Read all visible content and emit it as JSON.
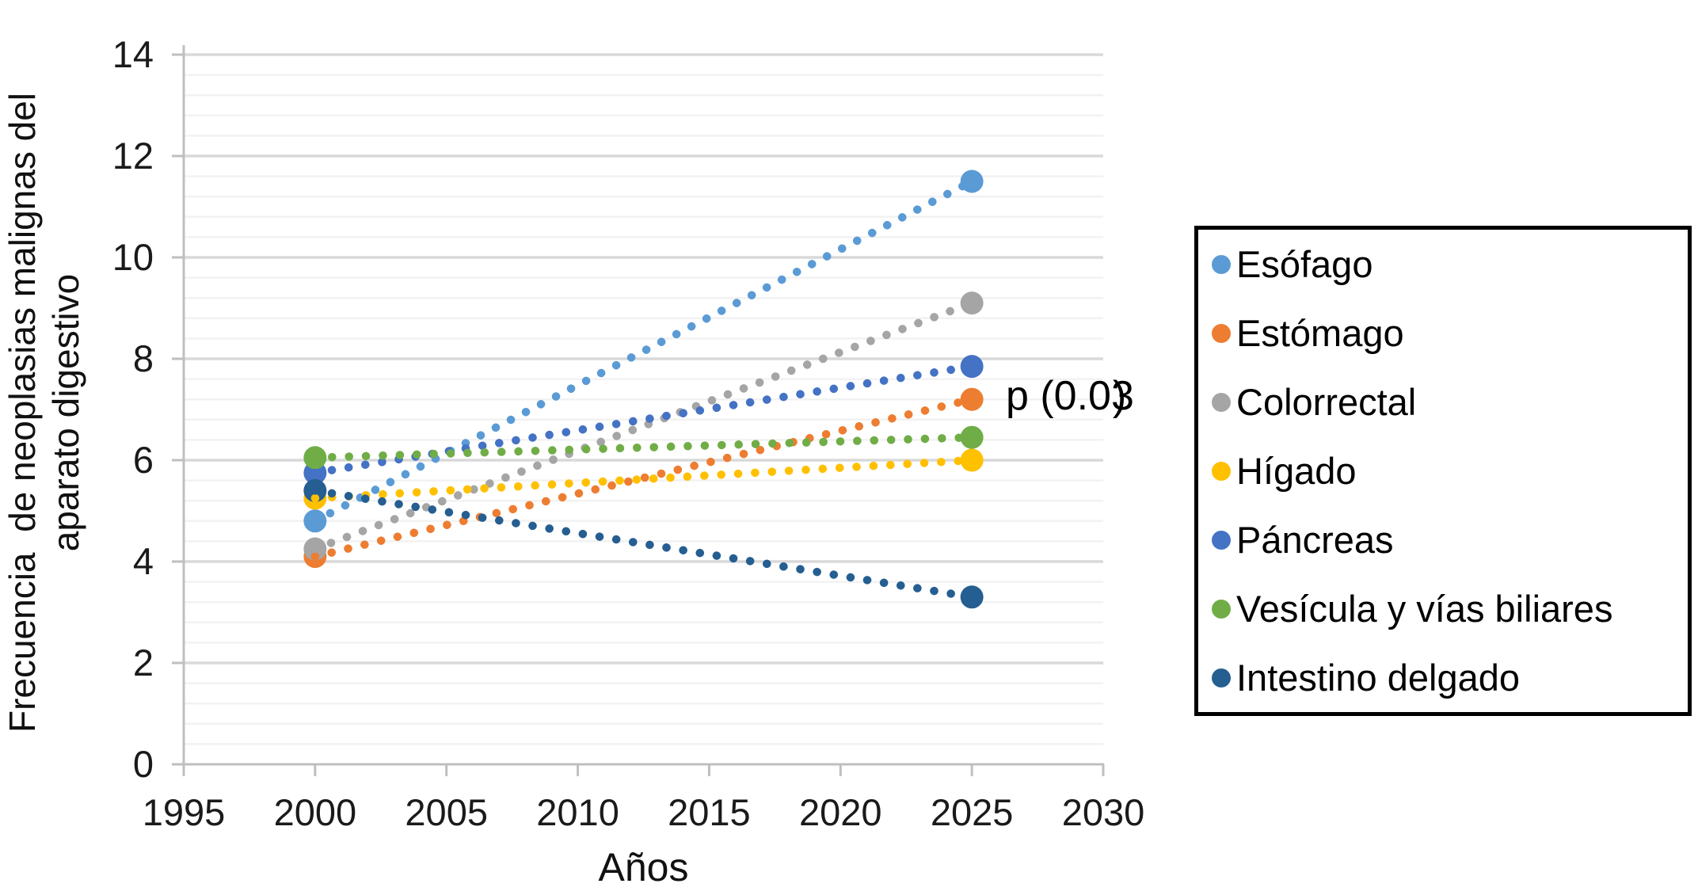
{
  "chart_data": {
    "type": "scatter",
    "title": "",
    "xlabel": "Años",
    "ylabel": "Frecuencia  de neoplasias malignas del aparato digestivo",
    "ylabel_lines": [
      "Frecuencia  de neoplasias malignas del",
      "aparato digestivo"
    ],
    "x": [
      2000,
      2025
    ],
    "series": [
      {
        "name": "Esófago",
        "color": "#5B9BD5",
        "values": [
          4.8,
          11.5
        ]
      },
      {
        "name": "Estómago",
        "color": "#ED7D31",
        "values": [
          4.1,
          7.2
        ]
      },
      {
        "name": "Colorrectal",
        "color": "#A5A5A5",
        "values": [
          4.25,
          9.1
        ]
      },
      {
        "name": "Hígado",
        "color": "#FFC000",
        "values": [
          5.25,
          6.0
        ]
      },
      {
        "name": "Páncreas",
        "color": "#4472C4",
        "values": [
          5.75,
          7.85
        ]
      },
      {
        "name": "Vesícula y vías biliares",
        "color": "#70AD47",
        "values": [
          6.05,
          6.45
        ]
      },
      {
        "name": "Intestino delgado",
        "color": "#255E91",
        "values": [
          5.4,
          3.3
        ]
      }
    ],
    "annotation": "p (0.03)",
    "x_ticks": [
      1995,
      2000,
      2005,
      2010,
      2015,
      2020,
      2025,
      2030
    ],
    "y_ticks": [
      0,
      2,
      4,
      6,
      8,
      10,
      12,
      14
    ],
    "xlim": [
      1995,
      2030
    ],
    "ylim": [
      0,
      14
    ],
    "grid": {
      "major_y_step": 2,
      "minor_y_step": 0.4,
      "grid_on": true
    },
    "legend_position": "right",
    "line_style": "dotted",
    "colors": {
      "major_grid": "#D9D9D9",
      "minor_grid": "#F2F2F2",
      "axis": "#BFBFBF",
      "text": "#1a1a1a"
    }
  }
}
